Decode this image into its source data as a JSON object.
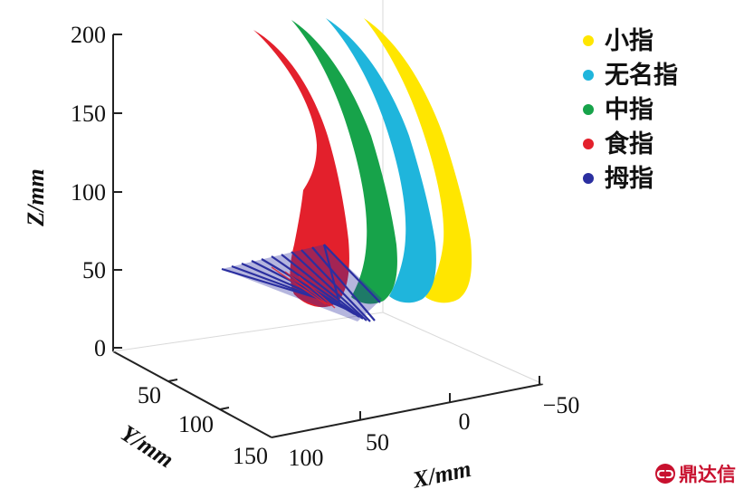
{
  "chart_data": {
    "type": "line",
    "projection": "3d",
    "xlabel": "X/mm",
    "ylabel": "Y/mm",
    "zlabel": "Z/mm",
    "x_ticks": [
      "100",
      "50",
      "0",
      "−50"
    ],
    "y_ticks": [
      "50",
      "100",
      "150"
    ],
    "z_ticks": [
      "0",
      "50",
      "100",
      "150",
      "200"
    ],
    "zlim": [
      0,
      200
    ],
    "grid": false,
    "legend_position": "top-right",
    "series": [
      {
        "name": "小指",
        "color": "#ffe600",
        "z_max": 200,
        "z_min": 50
      },
      {
        "name": "无名指",
        "color": "#1fb5dc",
        "z_max": 200,
        "z_min": 50
      },
      {
        "name": "中指",
        "color": "#17a34a",
        "z_max": 195,
        "z_min": 50
      },
      {
        "name": "食指",
        "color": "#e3202c",
        "z_max": 185,
        "z_min": 45
      },
      {
        "name": "拇指",
        "color": "#2b2fa0",
        "z_min": 30,
        "z_max": 60
      }
    ]
  },
  "watermark": {
    "text": "鼎达信",
    "logo": "dingdaxin-logo"
  }
}
